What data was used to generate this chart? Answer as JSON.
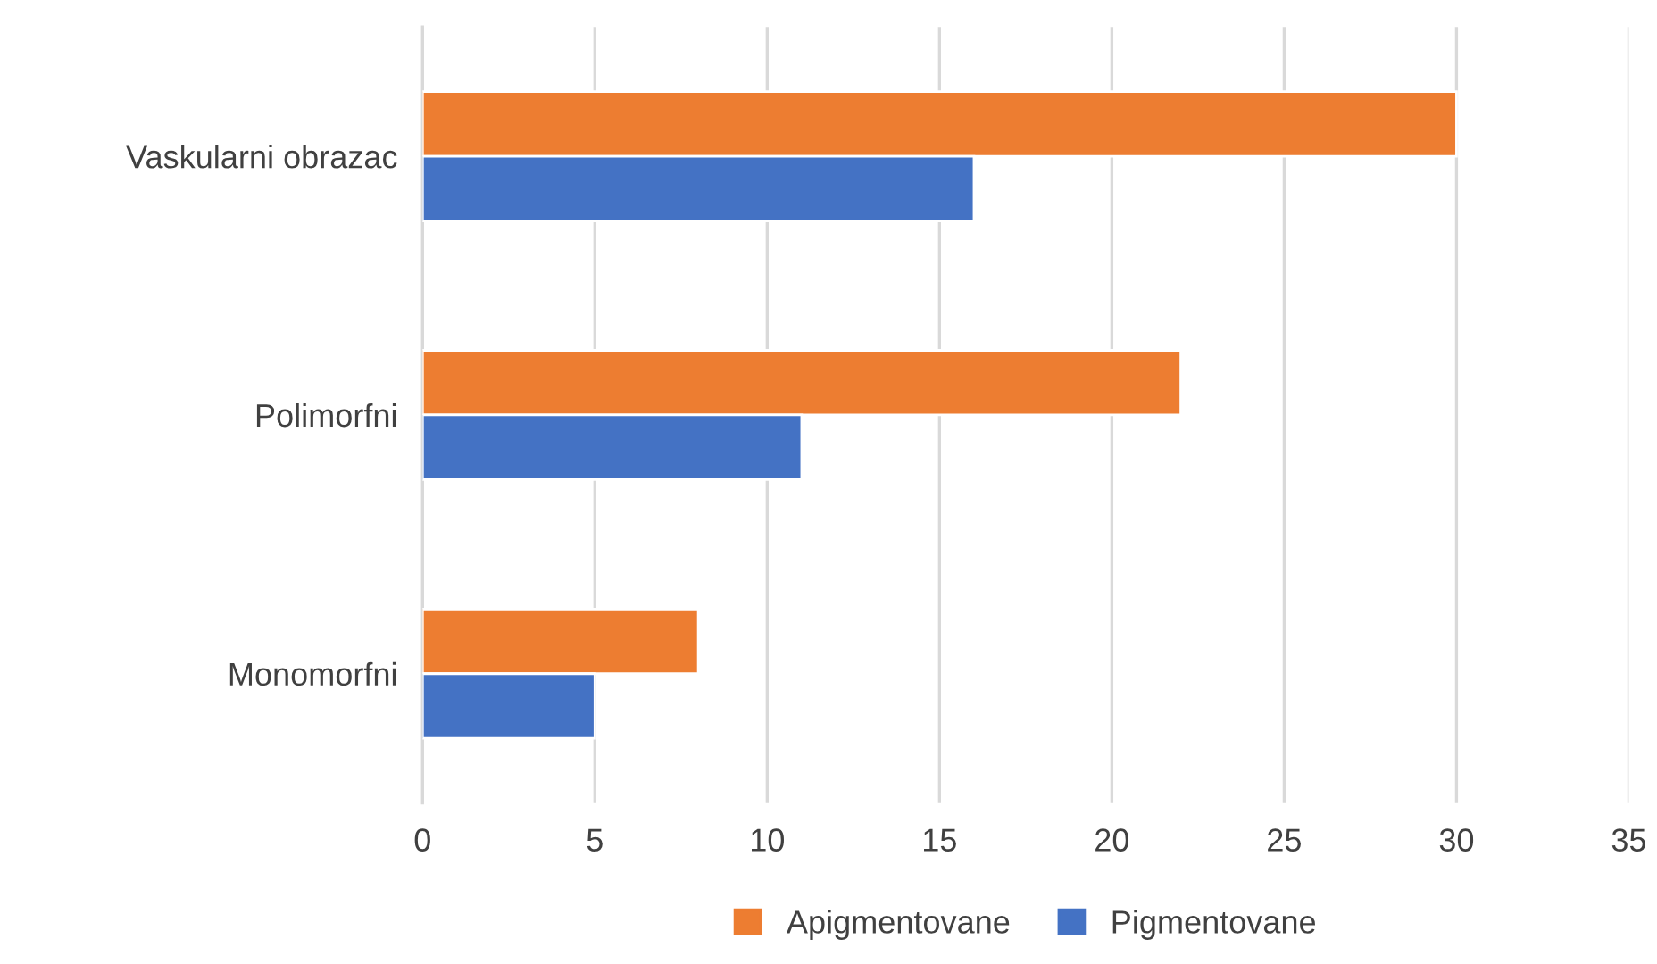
{
  "chart_data": {
    "type": "bar",
    "orientation": "horizontal",
    "categories": [
      "Vaskularni obrazac",
      "Polimorfni",
      "Monomorfni"
    ],
    "series": [
      {
        "name": "Apigmentovane",
        "color": "#ed7d31",
        "values": [
          30,
          22,
          8
        ]
      },
      {
        "name": "Pigmentovane",
        "color": "#4472c4",
        "values": [
          16,
          11,
          5
        ]
      }
    ],
    "xlim": [
      0,
      35
    ],
    "xticks": [
      0,
      5,
      10,
      15,
      20,
      25,
      30,
      35
    ],
    "grid": "x",
    "legend": "bottom"
  }
}
